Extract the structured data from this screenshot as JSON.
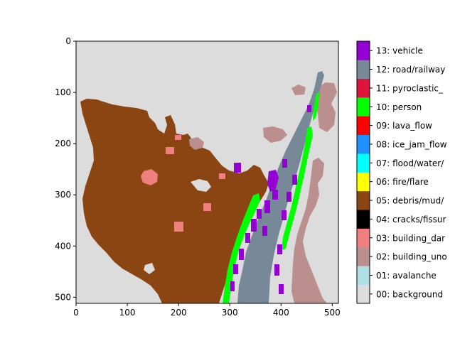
{
  "chart_data": {
    "type": "heatmap",
    "title": "",
    "xlabel": "",
    "ylabel": "",
    "x_ticks": [
      0,
      100,
      200,
      300,
      400,
      500
    ],
    "y_ticks": [
      0,
      100,
      200,
      300,
      400,
      500
    ],
    "xlim": [
      0,
      512
    ],
    "ylim": [
      512,
      0
    ],
    "image_width": 512,
    "image_height": 512,
    "colorbar": {
      "position": "right",
      "classes": [
        {
          "id": 0,
          "label": "00: background",
          "color": "#dcdcdc"
        },
        {
          "id": 1,
          "label": "01: avalanche",
          "color": "#b0e0e6"
        },
        {
          "id": 2,
          "label": "02: building_uno",
          "color": "#bc8f8f"
        },
        {
          "id": 3,
          "label": "03: building_dar",
          "color": "#f08080"
        },
        {
          "id": 4,
          "label": "04: cracks/fissur",
          "color": "#000000"
        },
        {
          "id": 5,
          "label": "05: debris/mud/",
          "color": "#8b4513"
        },
        {
          "id": 6,
          "label": "06: fire/flare",
          "color": "#ffff00"
        },
        {
          "id": 7,
          "label": "07: flood/water/",
          "color": "#00ffff"
        },
        {
          "id": 8,
          "label": "08: ice_jam_flow",
          "color": "#1e90ff"
        },
        {
          "id": 9,
          "label": "09: lava_flow",
          "color": "#ff0000"
        },
        {
          "id": 10,
          "label": "10: person",
          "color": "#00ff00"
        },
        {
          "id": 11,
          "label": "11: pyroclastic_",
          "color": "#dc143c"
        },
        {
          "id": 12,
          "label": "12: road/railway",
          "color": "#778899"
        },
        {
          "id": 13,
          "label": "13: vehicle",
          "color": "#9400d3"
        }
      ]
    }
  }
}
